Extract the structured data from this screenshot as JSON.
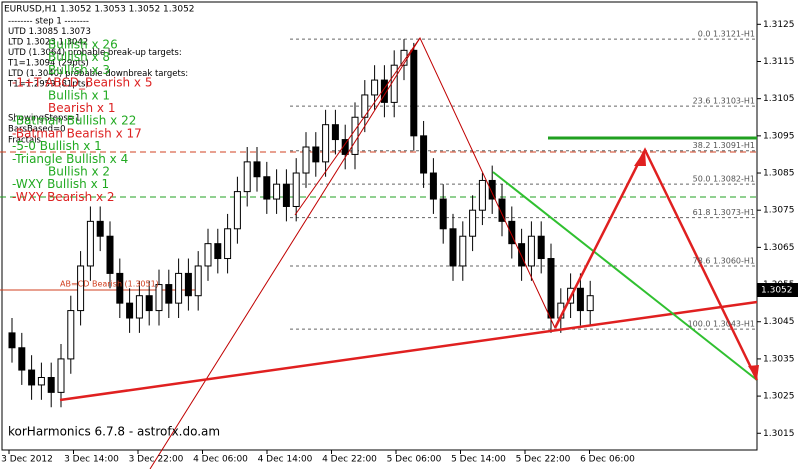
{
  "chart_data": {
    "type": "candlestick",
    "title": "EURUSD,H1  1.3052 1.3053 1.3052 1.3052",
    "ylim": [
      1.30105,
      1.3131
    ],
    "yticks": [
      1.3125,
      1.3115,
      1.3105,
      1.3095,
      1.3085,
      1.3075,
      1.3065,
      1.3055,
      1.3045,
      1.3035,
      1.3025,
      1.3015
    ],
    "categories": [
      "3 Dec 2012",
      "3 Dec 14:00",
      "3 Dec 22:00",
      "4 Dec 06:00",
      "4 Dec 14:00",
      "4 Dec 22:00",
      "5 Dec 06:00",
      "5 Dec 14:00",
      "5 Dec 22:00",
      "6 Dec 06:00"
    ],
    "bull_color": "#ffffff",
    "bear_color": "#000000",
    "open": [
      1.3042,
      1.3038,
      1.3032,
      1.3028,
      1.303,
      1.3026,
      1.3035,
      1.3048,
      1.306,
      1.3072,
      1.3068,
      1.3058,
      1.305,
      1.3046,
      1.3052,
      1.3048,
      1.3055,
      1.305,
      1.3058,
      1.3052,
      1.306,
      1.3066,
      1.3062,
      1.307,
      1.308,
      1.3088,
      1.3084,
      1.3078,
      1.3082,
      1.3076,
      1.3085,
      1.3092,
      1.3088,
      1.3098,
      1.3094,
      1.309,
      1.31,
      1.3106,
      1.311,
      1.3104,
      1.3114,
      1.3118,
      1.3095,
      1.3085,
      1.3078,
      1.307,
      1.306,
      1.3068,
      1.3075,
      1.3083,
      1.3078,
      1.3072,
      1.3066,
      1.306,
      1.3068,
      1.3062,
      1.3046,
      1.305,
      1.3054,
      1.3048
    ],
    "high": [
      1.3046,
      1.3042,
      1.3036,
      1.3034,
      1.3034,
      1.3039,
      1.3052,
      1.3064,
      1.3076,
      1.3076,
      1.3072,
      1.3062,
      1.3054,
      1.3056,
      1.3056,
      1.3059,
      1.3059,
      1.3062,
      1.3062,
      1.3064,
      1.307,
      1.307,
      1.3074,
      1.3084,
      1.3092,
      1.3092,
      1.3088,
      1.3086,
      1.3086,
      1.3089,
      1.3096,
      1.3096,
      1.3102,
      1.3102,
      1.3098,
      1.3104,
      1.311,
      1.3114,
      1.3114,
      1.3118,
      1.3121,
      1.312,
      1.3099,
      1.3089,
      1.3082,
      1.3074,
      1.3072,
      1.3079,
      1.3085,
      1.3087,
      1.3082,
      1.3076,
      1.307,
      1.3072,
      1.3072,
      1.3066,
      1.3054,
      1.3058,
      1.3058,
      1.3056
    ],
    "low": [
      1.3034,
      1.3028,
      1.3024,
      1.3024,
      1.3022,
      1.3022,
      1.3031,
      1.3044,
      1.3056,
      1.3064,
      1.3054,
      1.3046,
      1.3042,
      1.3042,
      1.3044,
      1.3044,
      1.3046,
      1.3046,
      1.3048,
      1.3048,
      1.3056,
      1.3058,
      1.3058,
      1.3066,
      1.3076,
      1.308,
      1.3074,
      1.3074,
      1.3072,
      1.3072,
      1.3081,
      1.3084,
      1.3084,
      1.309,
      1.3086,
      1.3086,
      1.3096,
      1.3102,
      1.31,
      1.31,
      1.311,
      1.3091,
      1.3081,
      1.3074,
      1.3066,
      1.3056,
      1.3056,
      1.3064,
      1.3071,
      1.3074,
      1.3068,
      1.3062,
      1.3056,
      1.3056,
      1.3058,
      1.3042,
      1.3042,
      1.3046,
      1.3044,
      1.3044
    ],
    "close": [
      1.3038,
      1.3032,
      1.3028,
      1.303,
      1.3026,
      1.3035,
      1.3048,
      1.306,
      1.3072,
      1.3068,
      1.3058,
      1.305,
      1.3046,
      1.3052,
      1.3048,
      1.3055,
      1.305,
      1.3058,
      1.3052,
      1.306,
      1.3066,
      1.3062,
      1.307,
      1.308,
      1.3088,
      1.3084,
      1.3078,
      1.3082,
      1.3076,
      1.3085,
      1.3092,
      1.3088,
      1.3098,
      1.3094,
      1.309,
      1.31,
      1.3106,
      1.311,
      1.3104,
      1.3114,
      1.3118,
      1.3095,
      1.3085,
      1.3078,
      1.307,
      1.306,
      1.3068,
      1.3075,
      1.3083,
      1.3078,
      1.3072,
      1.3066,
      1.306,
      1.3068,
      1.3062,
      1.3046,
      1.305,
      1.3054,
      1.3048,
      1.3052
    ],
    "fib_levels": [
      {
        "value": 1.3121,
        "label": "0.0 1.3121-H1"
      },
      {
        "value": 1.3103,
        "label": "23.6 1.3103-H1"
      },
      {
        "value": 1.3091,
        "label": "38.2 1.3091-H1"
      },
      {
        "value": 1.3082,
        "label": "50.0 1.3082-H1"
      },
      {
        "value": 1.3073,
        "label": "61.8 1.3073-H1"
      },
      {
        "value": 1.306,
        "label": "78.6 1.3060-H1"
      },
      {
        "value": 1.3043,
        "label": "100.0 1.3043-H1"
      }
    ],
    "price_label": "1.3052",
    "info_lines": [
      "-------- step 1 --------",
      "UTD 1.3085  1.3073",
      "LTD 1.3023  1.3042",
      "UTD (1.3064) probable break-up targets:",
      "T1=1.3094 (29pts)",
      "LTD (1.3040) probable downbreak targets:",
      "T1=1.2959 (81pts)"
    ],
    "side_lines": [
      "ShowingSteps=1",
      "BarsBased=0",
      "Fractals"
    ],
    "patterns": [
      {
        "text": "Bullish x 26",
        "color": "#22aa22"
      },
      {
        "text": "Bullish x 8",
        "color": "#22aa22"
      },
      {
        "text": "Bullish x 3",
        "color": "#22aa22"
      },
      {
        "text": "-1+T ABCD_Bearish x 5",
        "color": "#dd2222"
      },
      {
        "text": "Bullish x 1",
        "color": "#22aa22"
      },
      {
        "text": "Bearish x 1",
        "color": "#dd2222"
      },
      {
        "text": "-Batman Bullish x 22",
        "color": "#22aa22"
      },
      {
        "text": "-Batman Bearish x 17",
        "color": "#dd2222"
      },
      {
        "text": "-5-0 Bullish x 1",
        "color": "#22aa22"
      },
      {
        "text": "-Triangle Bullish x 4",
        "color": "#22aa22"
      },
      {
        "text": "Bullish x 2",
        "color": "#22aa22"
      },
      {
        "text": "-WXY Bullish x 1",
        "color": "#22aa22"
      },
      {
        "text": "-WXY Bearish x 2",
        "color": "#dd2222"
      }
    ],
    "pattern_note": "AB=CD Bearish (1.3051)",
    "footer": "korHarmonics 6.7.8 - astrofx.do.am"
  }
}
